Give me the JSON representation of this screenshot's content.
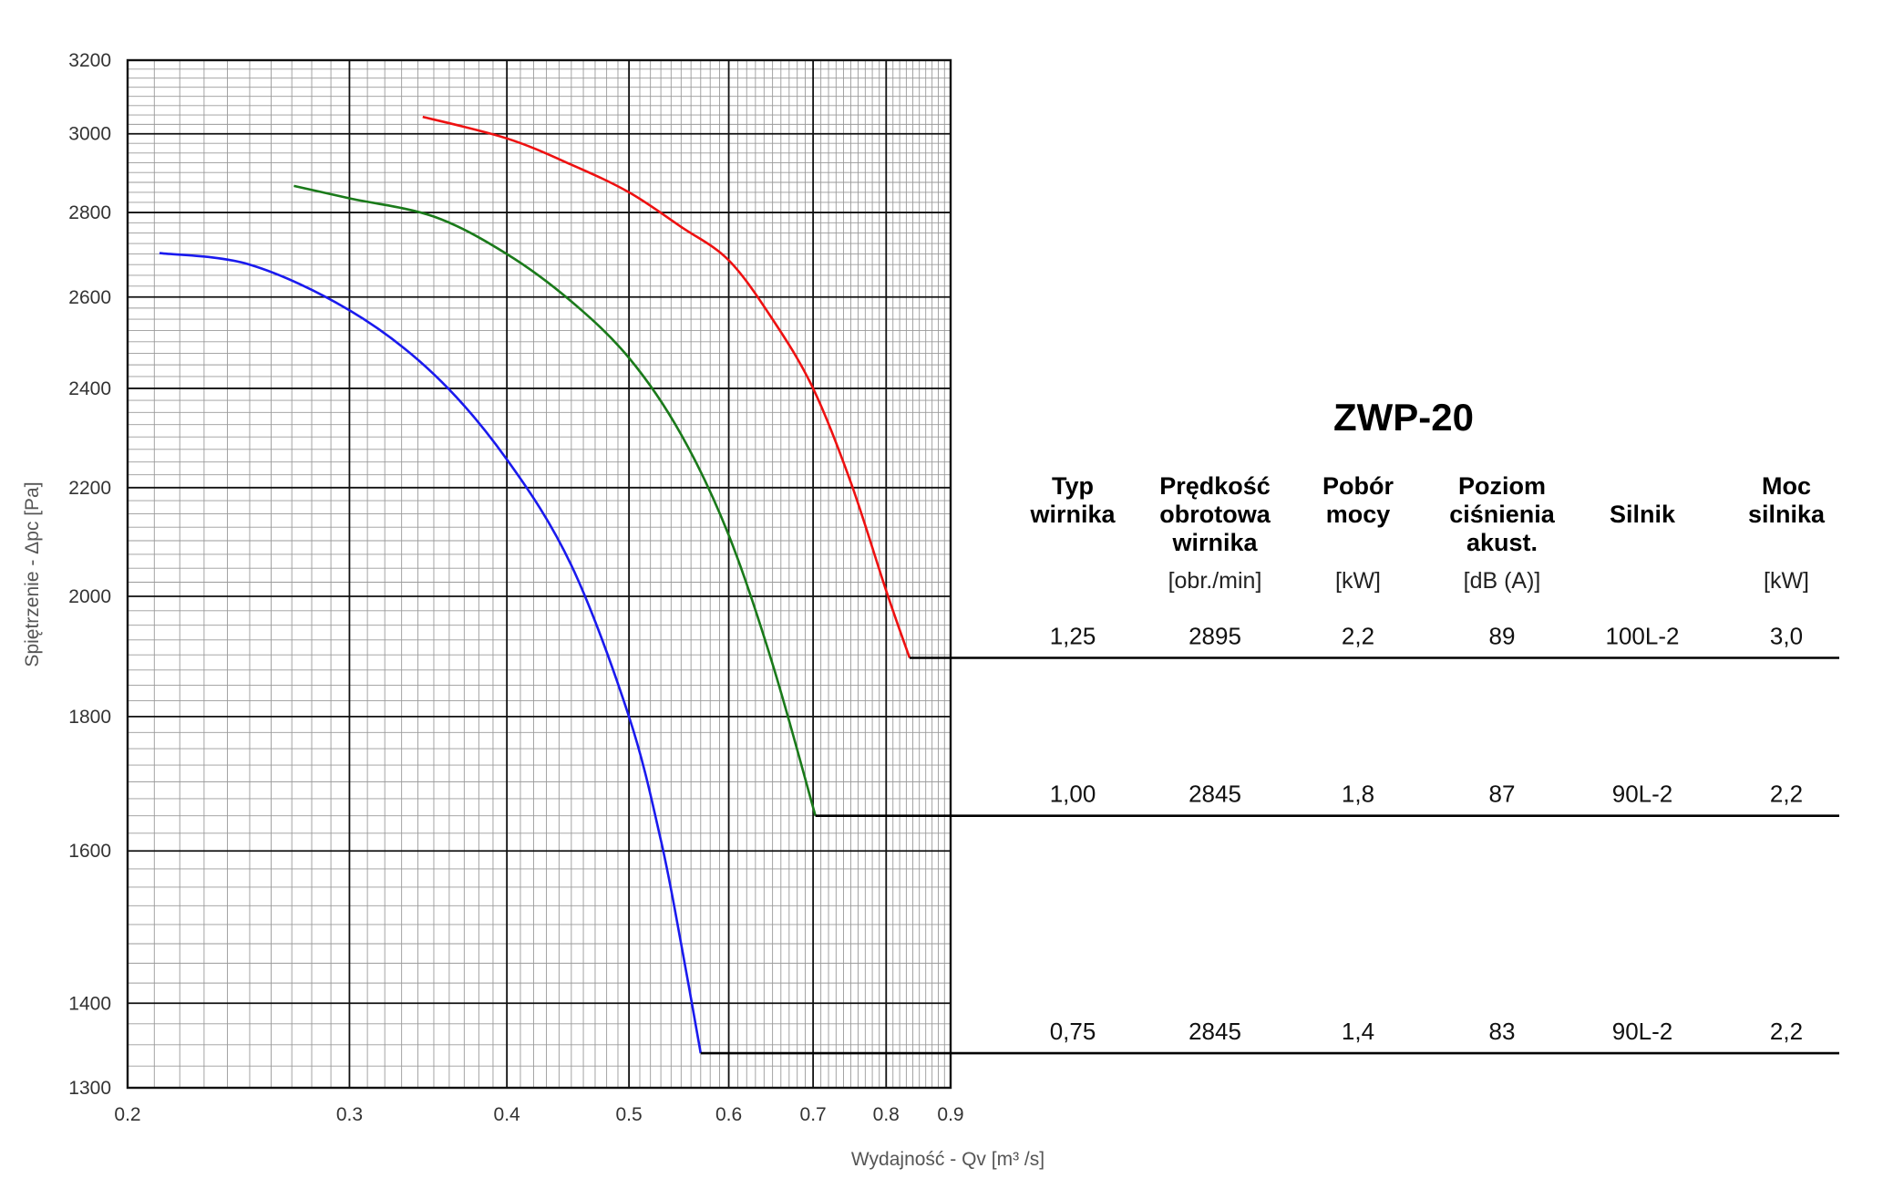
{
  "title": "ZWP-20",
  "table": {
    "headers": [
      [
        "Typ",
        "wirnika"
      ],
      [
        "Prędkość",
        "obrotowa",
        "wirnika"
      ],
      [
        "Pobór",
        "mocy"
      ],
      [
        "Poziom",
        "ciśnienia",
        "akust."
      ],
      [
        "Silnik"
      ],
      [
        "Moc",
        "silnika"
      ]
    ],
    "units": [
      "",
      "[obr./min]",
      "[kW]",
      "[dB (A)]",
      "",
      "[kW]"
    ],
    "rows": [
      [
        "1,25",
        "2895",
        "2,2",
        "89",
        "100L-2",
        "3,0"
      ],
      [
        "1,00",
        "2845",
        "1,8",
        "87",
        "90L-2",
        "2,2"
      ],
      [
        "0,75",
        "2845",
        "1,4",
        "83",
        "90L-2",
        "2,2"
      ]
    ]
  },
  "chart_data": {
    "type": "line",
    "xscale": "log",
    "yscale": "log",
    "xlim": [
      0.2,
      0.9
    ],
    "ylim": [
      1300,
      3200
    ],
    "grid": true,
    "xlabel": "Wydajność - Qv [m³ /s]",
    "ylabel": "Spiętrzenie - Δpc [Pa]",
    "xticks": [
      "0.2",
      "0.3",
      "0.4",
      "0.5",
      "0.6",
      "0.7",
      "0.8",
      "0.9"
    ],
    "xtick_values": [
      0.2,
      0.3,
      0.4,
      0.5,
      0.6,
      0.7,
      0.8,
      0.9
    ],
    "yticks": [
      "1300",
      "1400",
      "1600",
      "1800",
      "2000",
      "2200",
      "2400",
      "2600",
      "2800",
      "3000",
      "3200"
    ],
    "ytick_values": [
      1300,
      1400,
      1600,
      1800,
      2000,
      2200,
      2400,
      2600,
      2800,
      3000,
      3200
    ],
    "series": [
      {
        "color": "#ee1111",
        "row": 0,
        "points": [
          [
            0.343,
            3045
          ],
          [
            0.4,
            2988
          ],
          [
            0.45,
            2920
          ],
          [
            0.5,
            2850
          ],
          [
            0.55,
            2765
          ],
          [
            0.6,
            2685
          ],
          [
            0.65,
            2550
          ],
          [
            0.7,
            2400
          ],
          [
            0.75,
            2210
          ],
          [
            0.8,
            2010
          ],
          [
            0.835,
            1895
          ]
        ]
      },
      {
        "color": "#1a7a1a",
        "row": 1,
        "points": [
          [
            0.271,
            2866
          ],
          [
            0.3,
            2835
          ],
          [
            0.35,
            2790
          ],
          [
            0.4,
            2700
          ],
          [
            0.45,
            2590
          ],
          [
            0.5,
            2465
          ],
          [
            0.55,
            2305
          ],
          [
            0.6,
            2110
          ],
          [
            0.65,
            1885
          ],
          [
            0.703,
            1650
          ]
        ]
      },
      {
        "color": "#1a1aee",
        "row": 2,
        "points": [
          [
            0.212,
            2702
          ],
          [
            0.25,
            2675
          ],
          [
            0.3,
            2570
          ],
          [
            0.35,
            2430
          ],
          [
            0.4,
            2255
          ],
          [
            0.45,
            2055
          ],
          [
            0.5,
            1800
          ],
          [
            0.53,
            1615
          ],
          [
            0.55,
            1475
          ],
          [
            0.57,
            1340
          ]
        ]
      }
    ]
  }
}
